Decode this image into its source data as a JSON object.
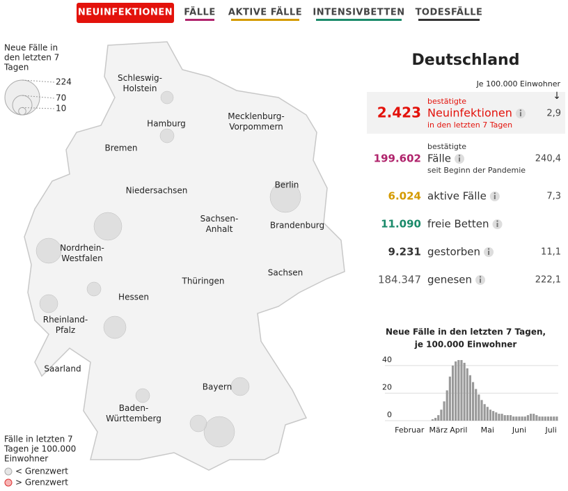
{
  "nav": {
    "items": [
      "NEUINFEKTIONEN",
      "FÄLLE",
      "AKTIVE FÄLLE",
      "INTENSIVBETTEN",
      "TODESFÄLLE"
    ]
  },
  "map": {
    "size_legend": {
      "title": [
        "Neue Fälle in",
        "den letzten 7",
        "Tagen"
      ],
      "sizes": [
        224,
        70,
        10
      ]
    },
    "labels": [
      [
        "Schleswig-",
        "Holstein"
      ],
      [
        "Hamburg"
      ],
      [
        "Mecklenburg-",
        "Vorpommern"
      ],
      [
        "Bremen"
      ],
      [
        "Niedersachsen"
      ],
      [
        "Berlin"
      ],
      [
        "Sachsen-",
        "Anhalt"
      ],
      [
        "Brandenburg"
      ],
      [
        "Nordrhein-",
        "Westfalen"
      ],
      [
        "Sachsen"
      ],
      [
        "Thüringen"
      ],
      [
        "Hessen"
      ],
      [
        "Rheinland-",
        "Pfalz"
      ],
      [
        "Saarland"
      ],
      [
        "Bayern"
      ],
      [
        "Baden-",
        "Württemberg"
      ]
    ],
    "color_legend": {
      "title": [
        "Fälle in letzten 7",
        "Tagen je 100.000",
        "Einwohner"
      ],
      "below": "< Grenzwert",
      "above": "> Grenzwert"
    }
  },
  "panel": {
    "title": "Deutschland",
    "note": "Je 100.000 Einwohner",
    "arrow": "↓",
    "rows": [
      {
        "value": "2.423",
        "pre": "bestätigte",
        "label": "Neuinfektionen",
        "post": "in den letzten 7 Tagen",
        "per100k": "2,9"
      },
      {
        "value": "199.602",
        "pre": "bestätigte",
        "label": "Fälle",
        "post": "seit Beginn der Pandemie",
        "per100k": "240,4"
      },
      {
        "value": "6.024",
        "label": "aktive Fälle",
        "per100k": "7,3"
      },
      {
        "value": "11.090",
        "label": "freie Betten"
      },
      {
        "value": "9.231",
        "label": "gestorben",
        "per100k": "11,1"
      },
      {
        "value": "184.347",
        "label": "genesen",
        "per100k": "222,1"
      }
    ]
  },
  "chart_data": {
    "type": "bar",
    "title": [
      "Neue Fälle in den letzten 7 Tagen,",
      "je 100.000 Einwohner"
    ],
    "color": "#999999",
    "categories": [
      null,
      null,
      null,
      null,
      null,
      null,
      null,
      null,
      "Februar",
      null,
      null,
      null,
      null,
      null,
      null,
      null,
      null,
      null,
      "März",
      null,
      null,
      null,
      null,
      null,
      null,
      "April",
      null,
      null,
      null,
      null,
      null,
      null,
      null,
      null,
      null,
      "Mai",
      null,
      null,
      null,
      null,
      null,
      null,
      null,
      null,
      null,
      null,
      "Juni",
      null,
      null,
      null,
      null,
      null,
      null,
      null,
      null,
      null,
      null,
      "Juli",
      null,
      null
    ],
    "values": [
      0,
      0,
      0,
      0,
      0,
      0,
      0,
      0,
      0,
      0,
      0,
      0,
      0,
      0,
      0,
      0,
      1,
      2,
      4,
      8,
      14,
      22,
      32,
      40,
      43,
      44,
      44,
      42,
      38,
      33,
      28,
      23,
      19,
      15,
      12,
      10,
      8,
      7,
      6,
      5,
      5,
      4,
      4,
      4,
      3,
      3,
      3,
      3,
      3,
      4,
      5,
      5,
      4,
      3,
      3,
      3,
      3,
      3,
      3,
      3
    ],
    "ylim": [
      0,
      45
    ],
    "yticks": [
      0,
      20,
      40
    ],
    "grid": true
  }
}
